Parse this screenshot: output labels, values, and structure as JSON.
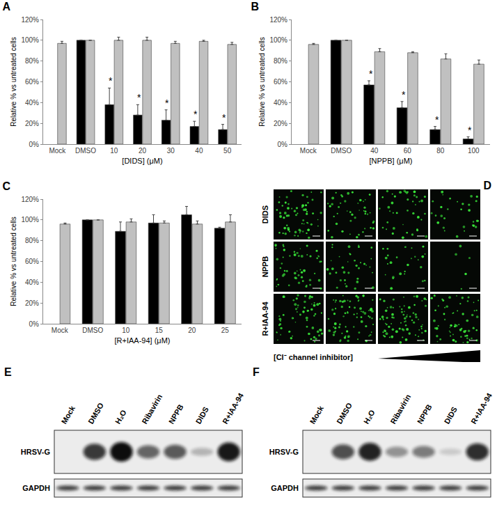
{
  "chart_data": [
    {
      "type": "bar",
      "title": "A",
      "categories": [
        "Mock",
        "DMSO",
        "10",
        "20",
        "30",
        "40",
        "50"
      ],
      "series": [
        {
          "color": "#000000",
          "values": [
            null,
            100,
            38,
            28,
            23,
            17,
            14
          ],
          "errors": [
            null,
            null,
            16,
            10,
            10,
            5,
            5
          ]
        },
        {
          "color": "#c0c0c0",
          "values": [
            97,
            100,
            100,
            100,
            97,
            99,
            96
          ],
          "errors": [
            2,
            null,
            3,
            3,
            2,
            1,
            2
          ]
        }
      ],
      "x_label": "[DIDS] (μM)",
      "y_label": "Relative % vs untreated cells",
      "ylim": [
        0,
        120
      ],
      "yticks": [
        {
          "value": 0,
          "label": "0%"
        },
        {
          "value": 20,
          "label": "20%"
        },
        {
          "value": 40,
          "label": "40%"
        },
        {
          "value": 60,
          "label": "60%"
        },
        {
          "value": 80,
          "label": "80%"
        },
        {
          "value": 100,
          "label": "100%"
        },
        {
          "value": 120,
          "label": "120%"
        }
      ],
      "grid": false,
      "annotations": [
        {
          "category": "10",
          "text": "*"
        },
        {
          "category": "20",
          "text": "*"
        },
        {
          "category": "30",
          "text": "*"
        },
        {
          "category": "40",
          "text": "*"
        },
        {
          "category": "50",
          "text": "*"
        }
      ]
    },
    {
      "type": "bar",
      "title": "B",
      "categories": [
        "Mock",
        "DMSO",
        "40",
        "60",
        "80",
        "100"
      ],
      "series": [
        {
          "color": "#000000",
          "values": [
            null,
            100,
            57,
            35,
            14,
            5
          ],
          "errors": [
            null,
            null,
            4,
            6,
            3,
            2
          ]
        },
        {
          "color": "#c0c0c0",
          "values": [
            96,
            100,
            89,
            88,
            82,
            77
          ],
          "errors": [
            1,
            null,
            3,
            1,
            5,
            4
          ]
        }
      ],
      "x_label": "[NPPB] (μM)",
      "y_label": "Relative % vs untreated cells",
      "ylim": [
        0,
        120
      ],
      "yticks": [
        {
          "value": 0,
          "label": "0%"
        },
        {
          "value": 20,
          "label": "20%"
        },
        {
          "value": 40,
          "label": "40%"
        },
        {
          "value": 60,
          "label": "60%"
        },
        {
          "value": 80,
          "label": "80%"
        },
        {
          "value": 100,
          "label": "100%"
        },
        {
          "value": 120,
          "label": "120%"
        }
      ],
      "grid": false,
      "annotations": [
        {
          "category": "40",
          "text": "*"
        },
        {
          "category": "60",
          "text": "*"
        },
        {
          "category": "80",
          "text": "*"
        },
        {
          "category": "100",
          "text": "*"
        }
      ]
    },
    {
      "type": "bar",
      "title": "C",
      "categories": [
        "Mock",
        "DMSO",
        "10",
        "15",
        "20",
        "25"
      ],
      "series": [
        {
          "color": "#000000",
          "values": [
            null,
            100,
            89,
            97,
            105,
            92
          ],
          "errors": [
            null,
            null,
            9,
            8,
            8,
            1
          ]
        },
        {
          "color": "#c0c0c0",
          "values": [
            96,
            100,
            98,
            97,
            96,
            98
          ],
          "errors": [
            1,
            null,
            3,
            2,
            3,
            7
          ]
        }
      ],
      "x_label": "[R+IAA-94] (μM)",
      "y_label": "Relative % vs untreated cells",
      "ylim": [
        0,
        120
      ],
      "yticks": [
        {
          "value": 0,
          "label": "0%"
        },
        {
          "value": 20,
          "label": "20%"
        },
        {
          "value": 40,
          "label": "40%"
        },
        {
          "value": 60,
          "label": "60%"
        },
        {
          "value": 80,
          "label": "80%"
        },
        {
          "value": 100,
          "label": "100%"
        },
        {
          "value": 120,
          "label": "120%"
        }
      ],
      "grid": false,
      "annotations": []
    }
  ],
  "micrographs": {
    "title": "D",
    "color": "#39e639",
    "x_label": "[Cl⁻ channel inhibitor]",
    "rows": [
      {
        "label": "DIDS",
        "signal": [
          0.7,
          0.5,
          0.45,
          0.35
        ]
      },
      {
        "label": "NPPB",
        "signal": [
          0.6,
          0.4,
          0.3,
          0.05
        ]
      },
      {
        "label": "R+IAA-94",
        "signal": [
          0.7,
          0.8,
          0.85,
          0.7
        ]
      }
    ]
  },
  "blots": [
    {
      "title": "E",
      "lanes": [
        "Mock",
        "DMSO",
        "H₂O",
        "Ribavirin",
        "NPPB",
        "DIDS",
        "R+IAA-94"
      ],
      "rows": [
        {
          "label": "HRSV-G",
          "intensity": [
            0,
            0.8,
            1.0,
            0.6,
            0.65,
            0.25,
            0.95
          ]
        },
        {
          "label": "GAPDH",
          "intensity": [
            0.8,
            0.8,
            0.8,
            0.8,
            0.8,
            0.8,
            0.8
          ]
        }
      ]
    },
    {
      "title": "F",
      "lanes": [
        "Mock",
        "DMSO",
        "H₂O",
        "Ribavirin",
        "NPPB",
        "DIDS",
        "R+IAA-94"
      ],
      "rows": [
        {
          "label": "HRSV-G",
          "intensity": [
            0,
            0.7,
            0.9,
            0.4,
            0.5,
            0.15,
            0.85
          ]
        },
        {
          "label": "GAPDH",
          "intensity": [
            0.8,
            0.8,
            0.8,
            0.8,
            0.8,
            0.8,
            0.8
          ]
        }
      ]
    }
  ]
}
